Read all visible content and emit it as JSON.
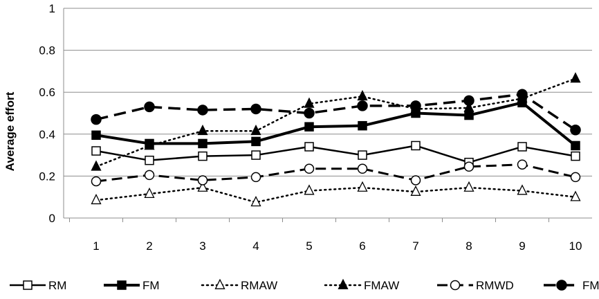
{
  "chart_data": {
    "type": "line",
    "ylabel": "Average effort",
    "ylim": [
      0,
      1
    ],
    "yticks": [
      0,
      0.2,
      0.4,
      0.6,
      0.8,
      1
    ],
    "ytick_labels": [
      "0",
      "0.2",
      "0.4",
      "0.6",
      "0.8",
      "1"
    ],
    "x": [
      1,
      2,
      3,
      4,
      5,
      6,
      7,
      8,
      9,
      10
    ],
    "x_labels": [
      "1",
      "2",
      "3",
      "4",
      "5",
      "6",
      "7",
      "8",
      "9",
      "10"
    ],
    "grid": "horizontal",
    "legend_position": "bottom",
    "series": [
      {
        "name": "RM",
        "line": "solid",
        "marker": "square-open",
        "width": 2.5,
        "values": [
          0.32,
          0.275,
          0.295,
          0.3,
          0.34,
          0.3,
          0.345,
          0.265,
          0.34,
          0.295
        ]
      },
      {
        "name": "FM",
        "line": "solid",
        "marker": "square-filled",
        "width": 4,
        "values": [
          0.395,
          0.355,
          0.355,
          0.365,
          0.435,
          0.44,
          0.5,
          0.49,
          0.55,
          0.345
        ]
      },
      {
        "name": "RMAW",
        "line": "dotted",
        "marker": "triangle-open",
        "width": 2.5,
        "values": [
          0.085,
          0.115,
          0.145,
          0.075,
          0.13,
          0.145,
          0.125,
          0.145,
          0.13,
          0.1
        ]
      },
      {
        "name": "FMAW",
        "line": "dotted",
        "marker": "triangle-filled",
        "width": 2.5,
        "values": [
          0.245,
          0.345,
          0.415,
          0.415,
          0.545,
          0.58,
          0.52,
          0.525,
          0.57,
          0.665
        ]
      },
      {
        "name": "RMWD",
        "line": "dashed",
        "marker": "circle-open",
        "width": 3,
        "values": [
          0.175,
          0.205,
          0.18,
          0.195,
          0.235,
          0.235,
          0.18,
          0.245,
          0.255,
          0.195
        ]
      },
      {
        "name": "FMWS",
        "line": "dashed",
        "marker": "circle-filled",
        "width": 3.5,
        "values": [
          0.47,
          0.53,
          0.515,
          0.52,
          0.5,
          0.535,
          0.535,
          0.56,
          0.59,
          0.42
        ]
      }
    ]
  }
}
